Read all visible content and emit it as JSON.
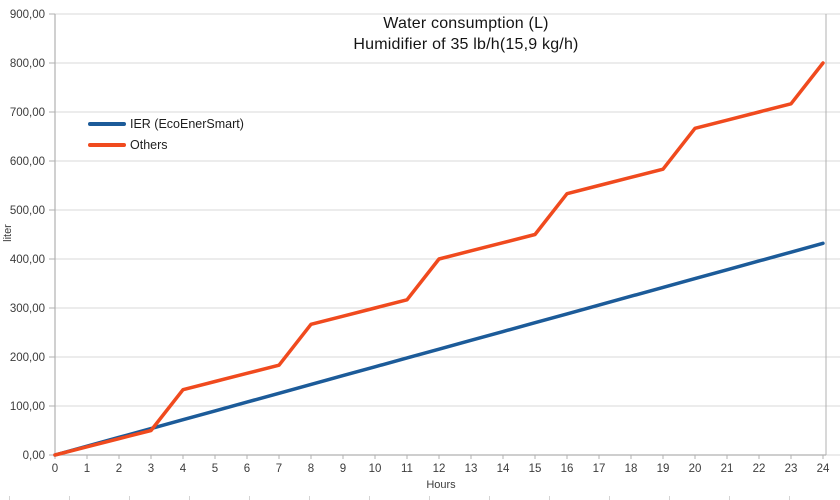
{
  "title": {
    "line1": "Water consumption (L)",
    "line2": "Humidifier of 35 lb/h(15,9 kg/h)"
  },
  "legend": [
    {
      "label": "IER (EcoEnerSmart)",
      "color": "#1c5b99"
    },
    {
      "label": "Others",
      "color": "#f04a1e"
    }
  ],
  "axes": {
    "x_label": "Hours",
    "y_label": "liter",
    "x_ticks": [
      "0",
      "1",
      "2",
      "3",
      "4",
      "5",
      "6",
      "7",
      "8",
      "9",
      "10",
      "11",
      "12",
      "13",
      "14",
      "15",
      "16",
      "17",
      "18",
      "19",
      "20",
      "21",
      "22",
      "23",
      "24"
    ],
    "y_ticks": [
      "0,00",
      "100,00",
      "200,00",
      "300,00",
      "400,00",
      "500,00",
      "600,00",
      "700,00",
      "800,00",
      "900,00"
    ]
  },
  "colors": {
    "background": "#ffffff",
    "grid": "#d9d9d9",
    "axis": "#b0b0b0",
    "tick_text": "#3c3c3c",
    "title_text": "#141414"
  },
  "chart_data": {
    "type": "line",
    "title": "Water consumption (L) — Humidifier of 35 lb/h(15,9 kg/h)",
    "xlabel": "Hours",
    "ylabel": "liter",
    "xlim": [
      0,
      24
    ],
    "ylim": [
      0,
      900
    ],
    "y_step": 100,
    "grid": true,
    "legend_position": "upper-left-inside",
    "x": [
      0,
      1,
      2,
      3,
      4,
      5,
      6,
      7,
      8,
      9,
      10,
      11,
      12,
      13,
      14,
      15,
      16,
      17,
      18,
      19,
      20,
      21,
      22,
      23,
      24
    ],
    "series": [
      {
        "name": "IER (EcoEnerSmart)",
        "color": "#1c5b99",
        "values": [
          0,
          18,
          36,
          54,
          72,
          90,
          108,
          126,
          144,
          162,
          180,
          198,
          216,
          234,
          252,
          270,
          288,
          306,
          324,
          342,
          360,
          378,
          396,
          414,
          432
        ]
      },
      {
        "name": "Others",
        "color": "#f04a1e",
        "values": [
          0,
          16.67,
          33.33,
          50,
          133.33,
          150,
          166.67,
          183.33,
          266.67,
          283.33,
          300,
          316.67,
          400,
          416.67,
          433.33,
          450,
          533.33,
          550,
          566.67,
          583.33,
          666.67,
          683.33,
          700,
          716.67,
          800
        ]
      }
    ]
  }
}
